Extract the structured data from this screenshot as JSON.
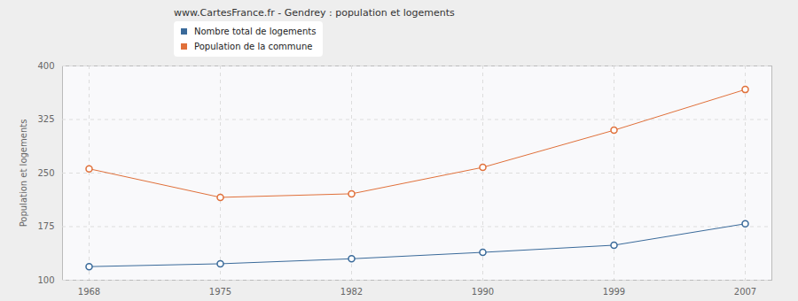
{
  "chart_data": {
    "type": "line",
    "title": "www.CartesFrance.fr - Gendrey : population et logements",
    "y_label": "Population et logements",
    "categories": [
      "1968",
      "1975",
      "1982",
      "1990",
      "1999",
      "2007"
    ],
    "series": [
      {
        "name": "Nombre total de logements",
        "color": "#3a6a9a",
        "values": [
          119,
          123,
          130,
          139,
          149,
          179
        ]
      },
      {
        "name": "Population de la commune",
        "color": "#e0703a",
        "values": [
          256,
          216,
          221,
          258,
          310,
          367
        ]
      }
    ],
    "ylim": [
      100,
      400
    ],
    "yticks": [
      100,
      175,
      250,
      325,
      400
    ],
    "grid": true,
    "legend": "top",
    "marker": "circle"
  }
}
